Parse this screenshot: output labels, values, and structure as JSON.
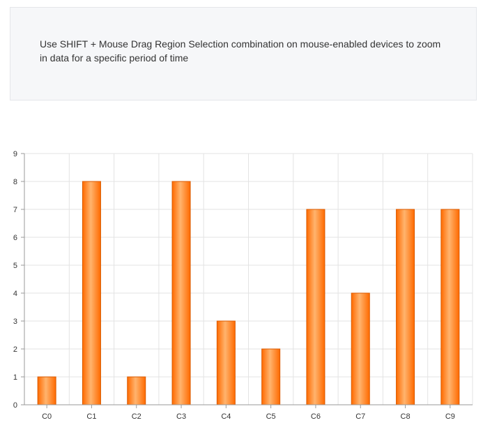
{
  "info": {
    "text": "Use SHIFT + Mouse Drag Region Selection combination on mouse-enabled devices to zoom in data for a specific period of time"
  },
  "chart_data": {
    "type": "bar",
    "categories": [
      "C0",
      "C1",
      "C2",
      "C3",
      "C4",
      "C5",
      "C6",
      "C7",
      "C8",
      "C9"
    ],
    "values": [
      1,
      8,
      1,
      8,
      3,
      2,
      7,
      4,
      7,
      7
    ],
    "yticks": [
      "0",
      "1",
      "2",
      "3",
      "4",
      "5",
      "6",
      "7",
      "8",
      "9"
    ],
    "ylim": [
      0,
      9
    ],
    "grid": true,
    "colors": {
      "bar_light": "#ffb46e",
      "bar_dark": "#ff6a00",
      "bar_stroke": "#d95a00",
      "grid": "#e3e3e3",
      "axis": "#999999",
      "label": "#333333"
    }
  }
}
